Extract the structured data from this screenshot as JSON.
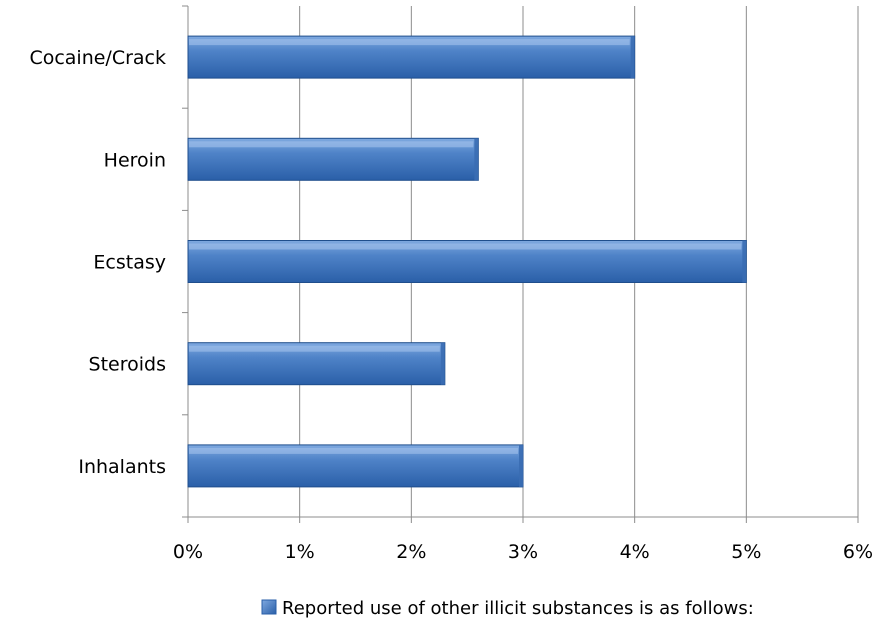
{
  "chart_data": {
    "type": "bar",
    "orientation": "horizontal",
    "categories": [
      "Cocaine/Crack",
      "Heroin",
      "Ecstasy",
      "Steroids",
      "Inhalants"
    ],
    "series": [
      {
        "name": "Reported use of other illicit substances is as follows:",
        "values": [
          4.0,
          2.6,
          5.0,
          2.3,
          3.0
        ],
        "color": "#4a7ebb"
      }
    ],
    "x_ticks": [
      "0%",
      "1%",
      "2%",
      "3%",
      "4%",
      "5%",
      "6%"
    ],
    "xlim": [
      0,
      6
    ],
    "grid": true,
    "legend_position": "bottom"
  }
}
